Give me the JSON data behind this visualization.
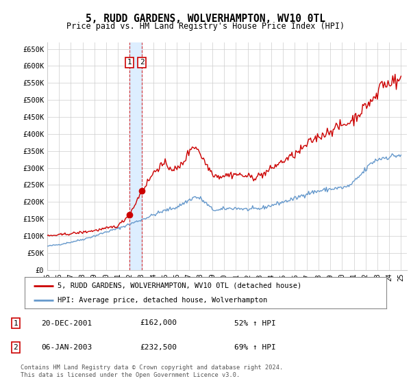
{
  "title": "5, RUDD GARDENS, WOLVERHAMPTON, WV10 0TL",
  "subtitle": "Price paid vs. HM Land Registry's House Price Index (HPI)",
  "ylabel_ticks": [
    "£0",
    "£50K",
    "£100K",
    "£150K",
    "£200K",
    "£250K",
    "£300K",
    "£350K",
    "£400K",
    "£450K",
    "£500K",
    "£550K",
    "£600K",
    "£650K"
  ],
  "ytick_values": [
    0,
    50000,
    100000,
    150000,
    200000,
    250000,
    300000,
    350000,
    400000,
    450000,
    500000,
    550000,
    600000,
    650000
  ],
  "ylim": [
    0,
    670000
  ],
  "xlim_min": 1995.0,
  "xlim_max": 2025.5,
  "background_color": "#ffffff",
  "grid_color": "#cccccc",
  "sale1": {
    "date_num": 2001.97,
    "price": 162000,
    "label": "1"
  },
  "sale2": {
    "date_num": 2003.02,
    "price": 232500,
    "label": "2"
  },
  "legend_line1": "5, RUDD GARDENS, WOLVERHAMPTON, WV10 0TL (detached house)",
  "legend_line2": "HPI: Average price, detached house, Wolverhampton",
  "table_rows": [
    {
      "num": "1",
      "date": "20-DEC-2001",
      "price": "£162,000",
      "pct": "52% ↑ HPI"
    },
    {
      "num": "2",
      "date": "06-JAN-2003",
      "price": "£232,500",
      "pct": "69% ↑ HPI"
    }
  ],
  "footnote": "Contains HM Land Registry data © Crown copyright and database right 2024.\nThis data is licensed under the Open Government Licence v3.0.",
  "hpi_color": "#6699cc",
  "price_color": "#cc0000",
  "vspan_color": "#ddeeff",
  "vline_color": "#cc0000",
  "marker_color": "#cc0000"
}
